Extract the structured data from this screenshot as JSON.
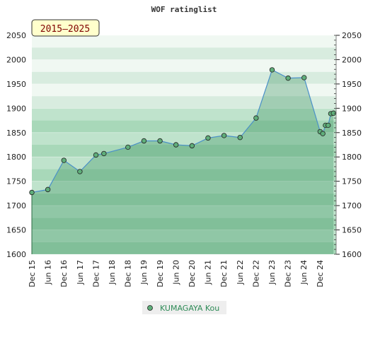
{
  "chart_data": {
    "type": "area",
    "title": "WOF ratinglist",
    "badge": "2015–2025",
    "ylim": [
      1600,
      2050
    ],
    "y_ticks": [
      1600,
      1650,
      1700,
      1750,
      1800,
      1850,
      1900,
      1950,
      2000,
      2050
    ],
    "x_tick_labels": [
      "Dec 15",
      "Jun 16",
      "Dec 16",
      "Jun 17",
      "Dec 17",
      "Jun 18",
      "Dec 18",
      "Jun 19",
      "Dec 19",
      "Jun 20",
      "Dec 20",
      "Jun 21",
      "Dec 21",
      "Jun 22",
      "Dec 22",
      "Jun 23",
      "Dec 23",
      "Jun 24",
      "Dec 24"
    ],
    "grid": true,
    "legend_position": "bottom",
    "series": [
      {
        "name": "KUMAGAYA Kou",
        "color": "#2e8b57",
        "points": [
          {
            "x": "2015-12",
            "y": 1727
          },
          {
            "x": "2016-06",
            "y": 1733
          },
          {
            "x": "2016-12",
            "y": 1793
          },
          {
            "x": "2017-06",
            "y": 1770
          },
          {
            "x": "2017-12",
            "y": 1804
          },
          {
            "x": "2018-03",
            "y": 1807
          },
          {
            "x": "2018-12",
            "y": 1820
          },
          {
            "x": "2019-06",
            "y": 1833
          },
          {
            "x": "2019-12",
            "y": 1833
          },
          {
            "x": "2020-06",
            "y": 1825
          },
          {
            "x": "2020-12",
            "y": 1823
          },
          {
            "x": "2021-06",
            "y": 1839
          },
          {
            "x": "2021-12",
            "y": 1844
          },
          {
            "x": "2022-06",
            "y": 1840
          },
          {
            "x": "2022-12",
            "y": 1880
          },
          {
            "x": "2023-06",
            "y": 1979
          },
          {
            "x": "2023-12",
            "y": 1962
          },
          {
            "x": "2024-06",
            "y": 1963
          },
          {
            "x": "2024-12",
            "y": 1852
          },
          {
            "x": "2025-01",
            "y": 1848
          },
          {
            "x": "2025-02",
            "y": 1865
          },
          {
            "x": "2025-03",
            "y": 1865
          },
          {
            "x": "2025-04",
            "y": 1889
          },
          {
            "x": "2025-05",
            "y": 1890
          }
        ]
      }
    ]
  }
}
